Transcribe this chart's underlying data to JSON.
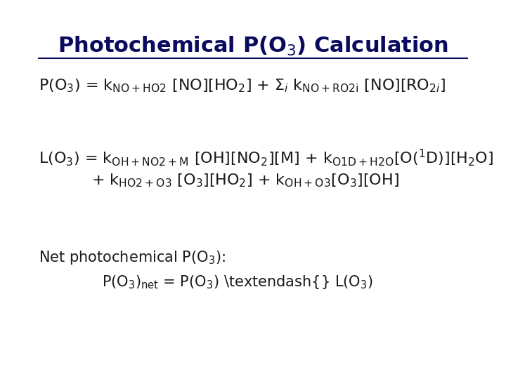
{
  "title": "Photochemical P(O$_3$) Calculation",
  "title_color": "#0a0a5e",
  "title_fontsize": 22,
  "background_color": "#ffffff",
  "text_color": "#1a1a1a",
  "main_fontsize": 16
}
